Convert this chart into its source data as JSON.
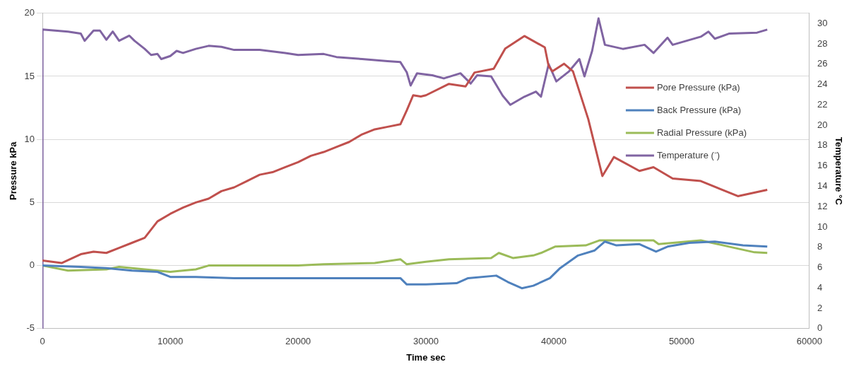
{
  "chart_data": {
    "type": "line",
    "xlabel": "Time sec",
    "ylabel": "Pressure kPa",
    "y2label": "Temperature °C",
    "xlim": [
      0,
      60000
    ],
    "xticks": [
      0,
      10000,
      20000,
      30000,
      40000,
      50000,
      60000
    ],
    "ylim": [
      -5,
      20
    ],
    "yticks": [
      -5,
      0,
      5,
      10,
      15,
      20
    ],
    "y2lim": [
      0,
      31
    ],
    "y2ticks": [
      0,
      2,
      4,
      6,
      8,
      10,
      12,
      14,
      16,
      18,
      20,
      22,
      24,
      26,
      28,
      30
    ],
    "grid": "y",
    "legend": "right",
    "marker": "none",
    "line_style": "solid",
    "series": [
      {
        "name": "Pore Pressure (kPa)",
        "color": "#c0504d",
        "x": [
          0,
          1500,
          3000,
          4000,
          5000,
          6000,
          7000,
          8000,
          9000,
          10000,
          11000,
          12000,
          13000,
          14000,
          15000,
          16000,
          17000,
          18000,
          19000,
          20000,
          21000,
          22000,
          23000,
          24000,
          25000,
          26000,
          27000,
          28000,
          28500,
          29000,
          29600,
          30000,
          31800,
          33100,
          33800,
          35300,
          36200,
          37700,
          39300,
          39600,
          39900,
          40800,
          41500,
          42700,
          43800,
          44700,
          46700,
          47800,
          49300,
          51500,
          53200,
          54400,
          56700
        ],
        "values": [
          0.4,
          0.2,
          0.9,
          1.1,
          1.0,
          1.4,
          1.8,
          2.2,
          3.5,
          4.1,
          4.6,
          5.0,
          5.3,
          5.9,
          6.2,
          6.7,
          7.2,
          7.4,
          7.8,
          8.2,
          8.7,
          9.0,
          9.4,
          9.8,
          10.4,
          10.8,
          11.0,
          11.2,
          12.3,
          13.5,
          13.4,
          13.5,
          14.4,
          14.2,
          15.3,
          15.6,
          17.2,
          18.2,
          17.3,
          15.8,
          15.4,
          16.0,
          15.4,
          11.6,
          7.1,
          8.6,
          7.5,
          7.8,
          6.9,
          6.7,
          6.0,
          5.5,
          6.0
        ]
      },
      {
        "name": "Back Pressure (kPa)",
        "color": "#4f81bd",
        "x": [
          0,
          3000,
          5000,
          7000,
          9000,
          10000,
          12000,
          15000,
          20000,
          28000,
          28500,
          30000,
          32400,
          33300,
          35500,
          36400,
          37500,
          38400,
          39700,
          40500,
          41900,
          43200,
          44000,
          44900,
          46700,
          48000,
          48900,
          50600,
          52600,
          54800,
          56700
        ],
        "values": [
          0,
          -0.1,
          -0.2,
          -0.4,
          -0.5,
          -0.9,
          -0.9,
          -1.0,
          -1.0,
          -1.0,
          -1.5,
          -1.5,
          -1.4,
          -1.0,
          -0.8,
          -1.3,
          -1.8,
          -1.6,
          -1.0,
          -0.2,
          0.8,
          1.2,
          1.9,
          1.6,
          1.7,
          1.1,
          1.5,
          1.8,
          1.9,
          1.6,
          1.5
        ]
      },
      {
        "name": "Radial Pressure (kPa)",
        "color": "#9bbb59",
        "x": [
          0,
          2000,
          5000,
          6000,
          8000,
          10000,
          12000,
          13000,
          20000,
          22000,
          26000,
          28000,
          28500,
          30000,
          31800,
          35100,
          35700,
          36800,
          38400,
          39000,
          40100,
          42500,
          43600,
          47800,
          48200,
          51500,
          53700,
          55700,
          56700
        ],
        "values": [
          0,
          -0.4,
          -0.3,
          -0.1,
          -0.3,
          -0.5,
          -0.3,
          0,
          0,
          0.1,
          0.2,
          0.5,
          0.1,
          0.3,
          0.5,
          0.6,
          1.0,
          0.6,
          0.8,
          1.0,
          1.5,
          1.6,
          2.0,
          2.0,
          1.7,
          2.0,
          1.5,
          1.05,
          1.0
        ]
      },
      {
        "name": "Temperature (⁻)",
        "color": "#8064a2",
        "axis": "y2",
        "x": [
          0,
          1,
          2000,
          3000,
          3300,
          4000,
          4500,
          5000,
          5500,
          6000,
          6800,
          7200,
          8000,
          8500,
          9000,
          9300,
          10000,
          10500,
          11000,
          12000,
          13000,
          14000,
          15000,
          17000,
          19000,
          20000,
          22000,
          23000,
          25000,
          27000,
          28000,
          28500,
          28800,
          29300,
          30500,
          31400,
          32700,
          33500,
          34000,
          35100,
          36000,
          36600,
          37700,
          38600,
          39000,
          39600,
          40200,
          41200,
          42000,
          42400,
          43000,
          43500,
          44000,
          45400,
          47100,
          47800,
          48900,
          49300,
          51500,
          52100,
          52600,
          53700,
          55900,
          56700
        ],
        "values": [
          0,
          29.4,
          29.2,
          29.0,
          28.3,
          29.3,
          29.3,
          28.4,
          29.2,
          28.3,
          28.8,
          28.3,
          27.5,
          26.9,
          27.0,
          26.5,
          26.8,
          27.3,
          27.1,
          27.5,
          27.8,
          27.7,
          27.4,
          27.4,
          27.1,
          26.9,
          27.0,
          26.7,
          26.5,
          26.3,
          26.2,
          25.2,
          23.9,
          25.1,
          24.9,
          24.6,
          25.1,
          24.1,
          24.9,
          24.8,
          22.9,
          22.0,
          22.8,
          23.3,
          22.8,
          26.0,
          24.3,
          25.3,
          26.5,
          24.8,
          27.3,
          30.5,
          27.9,
          27.5,
          27.9,
          27.1,
          28.6,
          27.9,
          28.7,
          29.2,
          28.5,
          29.0,
          29.1,
          29.4
        ]
      }
    ]
  }
}
